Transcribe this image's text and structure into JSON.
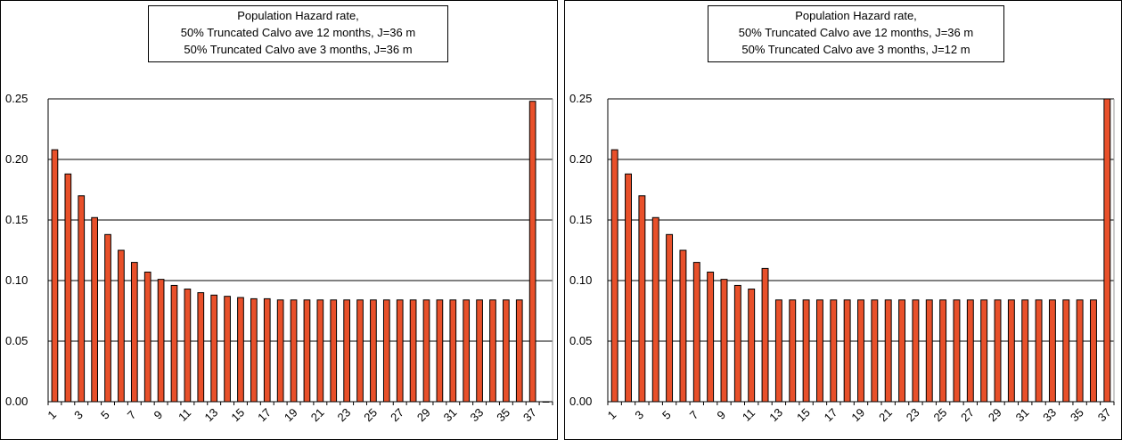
{
  "chart_data": [
    {
      "type": "bar",
      "title": "",
      "xlabel": "",
      "ylabel": "",
      "ylim": [
        0,
        0.25
      ],
      "yticks": [
        "0.00",
        "0.05",
        "0.10",
        "0.15",
        "0.20",
        "0.25"
      ],
      "grid": true,
      "legend_position": "top-center",
      "legend": [
        "Population Hazard rate,",
        "50% Truncated Calvo ave 12 months, J=36 m",
        "50% Truncated Calvo ave 3 months, J=36 m"
      ],
      "bar_color": "#e8502a",
      "categories": [
        "1",
        "2",
        "3",
        "4",
        "5",
        "6",
        "7",
        "8",
        "9",
        "10",
        "11",
        "12",
        "13",
        "14",
        "15",
        "16",
        "17",
        "18",
        "19",
        "20",
        "21",
        "22",
        "23",
        "24",
        "25",
        "26",
        "27",
        "28",
        "29",
        "30",
        "31",
        "32",
        "33",
        "34",
        "35",
        "36",
        "37",
        "38"
      ],
      "x_tick_labels": [
        "1",
        "3",
        "5",
        "7",
        "9",
        "11",
        "13",
        "15",
        "17",
        "19",
        "21",
        "23",
        "25",
        "27",
        "29",
        "31",
        "33",
        "35",
        "37"
      ],
      "values": [
        0.208,
        0.188,
        0.17,
        0.152,
        0.138,
        0.125,
        0.115,
        0.107,
        0.101,
        0.096,
        0.093,
        0.09,
        0.088,
        0.087,
        0.086,
        0.085,
        0.085,
        0.084,
        0.084,
        0.084,
        0.084,
        0.084,
        0.084,
        0.084,
        0.084,
        0.084,
        0.084,
        0.084,
        0.084,
        0.084,
        0.084,
        0.084,
        0.084,
        0.084,
        0.084,
        0.084,
        0.248,
        0.0
      ]
    },
    {
      "type": "bar",
      "title": "",
      "xlabel": "",
      "ylabel": "",
      "ylim": [
        0,
        0.25
      ],
      "yticks": [
        "0.00",
        "0.05",
        "0.10",
        "0.15",
        "0.20",
        "0.25"
      ],
      "grid": true,
      "legend_position": "top-center",
      "legend": [
        "Population Hazard rate,",
        "50% Truncated Calvo ave 12 months, J=36 m",
        "50% Truncated Calvo ave 3 months, J=12 m"
      ],
      "bar_color": "#e8502a",
      "categories": [
        "1",
        "2",
        "3",
        "4",
        "5",
        "6",
        "7",
        "8",
        "9",
        "10",
        "11",
        "12",
        "13",
        "14",
        "15",
        "16",
        "17",
        "18",
        "19",
        "20",
        "21",
        "22",
        "23",
        "24",
        "25",
        "26",
        "27",
        "28",
        "29",
        "30",
        "31",
        "32",
        "33",
        "34",
        "35",
        "36",
        "37"
      ],
      "x_tick_labels": [
        "1",
        "3",
        "5",
        "7",
        "9",
        "11",
        "13",
        "15",
        "17",
        "19",
        "21",
        "23",
        "25",
        "27",
        "29",
        "31",
        "33",
        "35",
        "37"
      ],
      "values": [
        0.208,
        0.188,
        0.17,
        0.152,
        0.138,
        0.125,
        0.115,
        0.107,
        0.101,
        0.096,
        0.093,
        0.11,
        0.084,
        0.084,
        0.084,
        0.084,
        0.084,
        0.084,
        0.084,
        0.084,
        0.084,
        0.084,
        0.084,
        0.084,
        0.084,
        0.084,
        0.084,
        0.084,
        0.084,
        0.084,
        0.084,
        0.084,
        0.084,
        0.084,
        0.084,
        0.084,
        0.25
      ]
    }
  ]
}
